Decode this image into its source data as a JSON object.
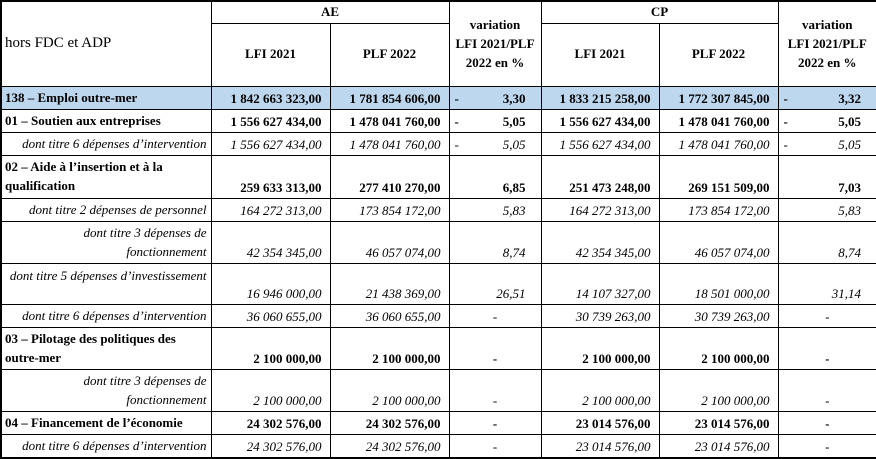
{
  "colors": {
    "highlight_row": "#bdd7ee",
    "border": "#000000",
    "background": "#ffffff"
  },
  "header": {
    "corner": "hors FDC et ADP",
    "groups": [
      "AE",
      "CP"
    ],
    "sub": [
      "LFI 2021",
      "PLF 2022"
    ],
    "variation_lines": [
      "variation",
      "LFI 2021/PLF",
      "2022 en %"
    ]
  },
  "rows": [
    {
      "kind": "program",
      "highlight": true,
      "label_lines": [
        "138 – Emploi outre-mer"
      ],
      "ae": {
        "lfi": "1 842 663 323,00",
        "plf": "1 781 854 606,00",
        "var": "3,30",
        "var_sign": "neg"
      },
      "cp": {
        "lfi": "1 833 215 258,00",
        "plf": "1 772 307 845,00",
        "var": "3,32",
        "var_sign": "neg"
      }
    },
    {
      "kind": "program",
      "label_lines": [
        "01 – Soutien aux entreprises"
      ],
      "ae": {
        "lfi": "1 556 627 434,00",
        "plf": "1 478 041 760,00",
        "var": "5,05",
        "var_sign": "neg"
      },
      "cp": {
        "lfi": "1 556 627 434,00",
        "plf": "1 478 041 760,00",
        "var": "5,05",
        "var_sign": "neg"
      }
    },
    {
      "kind": "sub",
      "label_lines": [
        "dont titre 6 dépenses d’intervention"
      ],
      "ae": {
        "lfi": "1 556 627 434,00",
        "plf": "1 478 041 760,00",
        "var": "5,05",
        "var_sign": "neg"
      },
      "cp": {
        "lfi": "1 556 627 434,00",
        "plf": "1 478 041 760,00",
        "var": "5,05",
        "var_sign": "neg"
      }
    },
    {
      "kind": "program",
      "label_lines": [
        "02 – Aide à l’insertion et à la",
        "qualification"
      ],
      "ae": {
        "lfi": "259 633 313,00",
        "plf": "277 410 270,00",
        "var": "6,85",
        "var_sign": "pos"
      },
      "cp": {
        "lfi": "251 473 248,00",
        "plf": "269 151 509,00",
        "var": "7,03",
        "var_sign": "pos"
      }
    },
    {
      "kind": "sub",
      "label_lines": [
        "dont titre 2 dépenses de personnel"
      ],
      "ae": {
        "lfi": "164 272 313,00",
        "plf": "173 854 172,00",
        "var": "5,83",
        "var_sign": "pos"
      },
      "cp": {
        "lfi": "164 272 313,00",
        "plf": "173 854 172,00",
        "var": "5,83",
        "var_sign": "pos"
      }
    },
    {
      "kind": "sub",
      "label_lines": [
        "dont titre 3 dépenses de",
        "fonctionnement"
      ],
      "ae": {
        "lfi": "42 354 345,00",
        "plf": "46 057 074,00",
        "var": "8,74",
        "var_sign": "pos"
      },
      "cp": {
        "lfi": "42 354 345,00",
        "plf": "46 057 074,00",
        "var": "8,74",
        "var_sign": "pos"
      }
    },
    {
      "kind": "sub",
      "tall": true,
      "label_lines": [
        "dont titre 5 dépenses d’investissement"
      ],
      "ae": {
        "lfi": "16 946 000,00",
        "plf": "21 438 369,00",
        "var": "26,51",
        "var_sign": "pos"
      },
      "cp": {
        "lfi": "14 107 327,00",
        "plf": "18 501 000,00",
        "var": "31,14",
        "var_sign": "pos"
      }
    },
    {
      "kind": "sub",
      "label_lines": [
        "dont titre 6 dépenses d’intervention"
      ],
      "ae": {
        "lfi": "36 060 655,00",
        "plf": "36 060 655,00",
        "var": "-",
        "var_sign": "none"
      },
      "cp": {
        "lfi": "30 739 263,00",
        "plf": "30 739 263,00",
        "var": "-",
        "var_sign": "none"
      }
    },
    {
      "kind": "program",
      "label_lines": [
        "03 – Pilotage des politiques des",
        "outre-mer"
      ],
      "ae": {
        "lfi": "2 100 000,00",
        "plf": "2 100 000,00",
        "var": "-",
        "var_sign": "none"
      },
      "cp": {
        "lfi": "2 100 000,00",
        "plf": "2 100 000,00",
        "var": "-",
        "var_sign": "none"
      }
    },
    {
      "kind": "sub",
      "label_lines": [
        "dont titre 3 dépenses de",
        "fonctionnement"
      ],
      "ae": {
        "lfi": "2 100 000,00",
        "plf": "2 100 000,00",
        "var": "-",
        "var_sign": "none"
      },
      "cp": {
        "lfi": "2 100 000,00",
        "plf": "2 100 000,00",
        "var": "-",
        "var_sign": "none"
      }
    },
    {
      "kind": "program",
      "label_lines": [
        "04 – Financement de l’économie"
      ],
      "ae": {
        "lfi": "24 302 576,00",
        "plf": "24 302 576,00",
        "var": "-",
        "var_sign": "none"
      },
      "cp": {
        "lfi": "23 014 576,00",
        "plf": "23 014 576,00",
        "var": "-",
        "var_sign": "none"
      }
    },
    {
      "kind": "sub",
      "label_lines": [
        "dont titre 6 dépenses d’intervention"
      ],
      "ae": {
        "lfi": "24 302 576,00",
        "plf": "24 302 576,00",
        "var": "-",
        "var_sign": "none"
      },
      "cp": {
        "lfi": "23 014 576,00",
        "plf": "23 014 576,00",
        "var": "-",
        "var_sign": "none"
      }
    }
  ]
}
